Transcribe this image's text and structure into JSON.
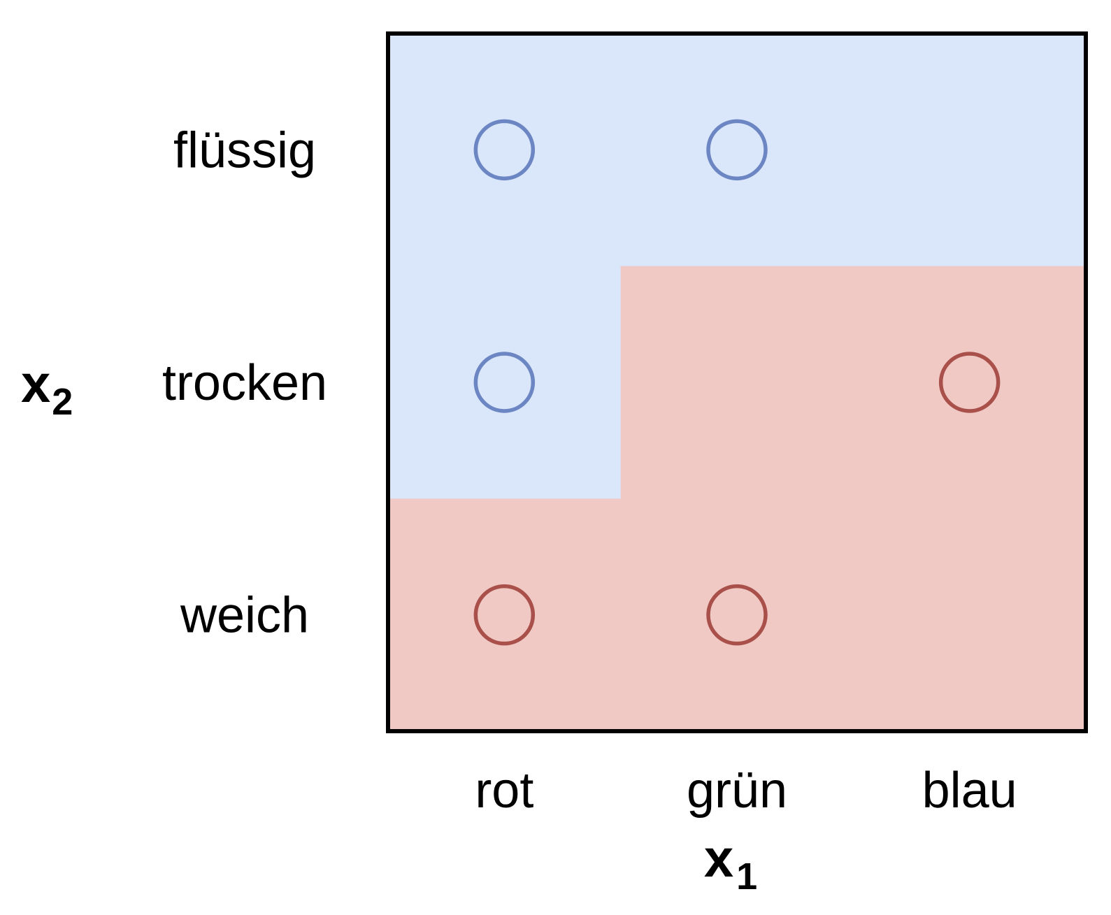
{
  "chart_data": {
    "type": "scatter",
    "x_categories": [
      "rot",
      "grün",
      "blau"
    ],
    "y_categories": [
      "flüssig",
      "trocken",
      "weich"
    ],
    "x_axis": {
      "label": "x",
      "subscript": "1"
    },
    "y_axis": {
      "label": "x",
      "subscript": "2"
    },
    "regions": [
      {
        "class": "blue",
        "cells": [
          [
            "rot",
            "flüssig"
          ],
          [
            "grün",
            "flüssig"
          ],
          [
            "blau",
            "flüssig"
          ],
          [
            "rot",
            "trocken"
          ]
        ]
      },
      {
        "class": "red",
        "cells": [
          [
            "grün",
            "trocken"
          ],
          [
            "blau",
            "trocken"
          ],
          [
            "rot",
            "weich"
          ],
          [
            "grün",
            "weich"
          ],
          [
            "blau",
            "weich"
          ]
        ]
      }
    ],
    "points": [
      {
        "x": "rot",
        "y": "flüssig",
        "class": "blue"
      },
      {
        "x": "grün",
        "y": "flüssig",
        "class": "blue"
      },
      {
        "x": "rot",
        "y": "trocken",
        "class": "blue"
      },
      {
        "x": "blau",
        "y": "trocken",
        "class": "red"
      },
      {
        "x": "rot",
        "y": "weich",
        "class": "red"
      },
      {
        "x": "grün",
        "y": "weich",
        "class": "red"
      }
    ],
    "colors": {
      "blue_region": "#dae6fa",
      "red_region": "#f0c9c5",
      "blue_marker": "#6b86c2",
      "red_marker": "#a9504a",
      "frame": "#000000"
    },
    "grid": false,
    "legend": "none"
  }
}
